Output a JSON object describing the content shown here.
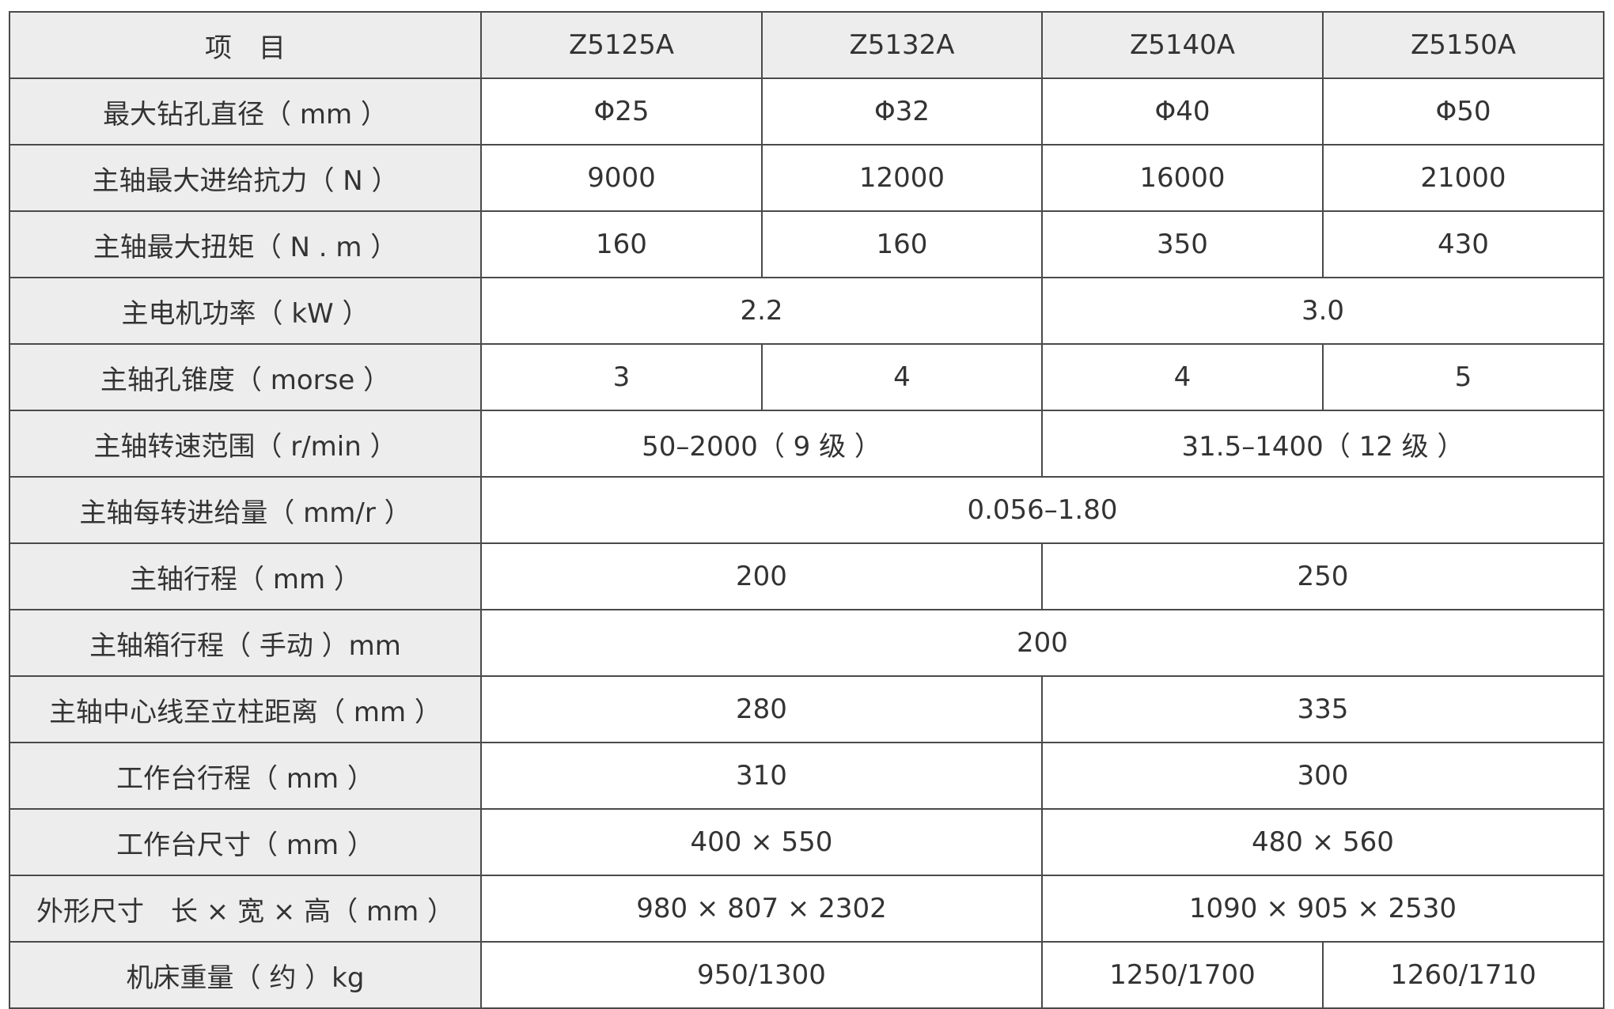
{
  "header": [
    "项　目",
    "Z5125A",
    "Z5132A",
    "Z5140A",
    "Z5150A"
  ],
  "rows": [
    {
      "label": "最大钻孔直径（ mm ）",
      "cells": [
        {
          "text": "Φ25",
          "span": 1
        },
        {
          "text": "Φ32",
          "span": 1
        },
        {
          "text": "Φ40",
          "span": 1
        },
        {
          "text": "Φ50",
          "span": 1
        }
      ]
    },
    {
      "label": "主轴最大进给抗力（ N ）",
      "cells": [
        {
          "text": "9000",
          "span": 1
        },
        {
          "text": "12000",
          "span": 1
        },
        {
          "text": "16000",
          "span": 1
        },
        {
          "text": "21000",
          "span": 1
        }
      ]
    },
    {
      "label": "主轴最大扭矩（ N . m ）",
      "cells": [
        {
          "text": "160",
          "span": 1
        },
        {
          "text": "160",
          "span": 1
        },
        {
          "text": "350",
          "span": 1
        },
        {
          "text": "430",
          "span": 1
        }
      ]
    },
    {
      "label": "主电机功率（ kW ）",
      "cells": [
        {
          "text": "2.2",
          "span": 2
        },
        {
          "text": "3.0",
          "span": 2
        }
      ]
    },
    {
      "label": "主轴孔锥度（ morse ）",
      "cells": [
        {
          "text": "3",
          "span": 1
        },
        {
          "text": "4",
          "span": 1
        },
        {
          "text": "4",
          "span": 1
        },
        {
          "text": "5",
          "span": 1
        }
      ]
    },
    {
      "label": "主轴转速范围（ r/min ）",
      "cells": [
        {
          "text": "50–2000（ 9 级 ）",
          "span": 2
        },
        {
          "text": "31.5–1400（ 12 级 ）",
          "span": 2
        }
      ]
    },
    {
      "label": "主轴每转进给量（ mm/r ）",
      "cells": [
        {
          "text": "0.056–1.80",
          "span": 4
        }
      ]
    },
    {
      "label": "主轴行程（ mm ）",
      "cells": [
        {
          "text": "200",
          "span": 2
        },
        {
          "text": "250",
          "span": 2
        }
      ]
    },
    {
      "label": "主轴箱行程（ 手动 ）mm",
      "cells": [
        {
          "text": "200",
          "span": 4
        }
      ]
    },
    {
      "label": "主轴中心线至立柱距离（ mm ）",
      "cells": [
        {
          "text": "280",
          "span": 2
        },
        {
          "text": "335",
          "span": 2
        }
      ]
    },
    {
      "label": "工作台行程（ mm ）",
      "cells": [
        {
          "text": "310",
          "span": 2
        },
        {
          "text": "300",
          "span": 2
        }
      ]
    },
    {
      "label": "工作台尺寸（ mm ）",
      "cells": [
        {
          "text": "400 × 550",
          "span": 2
        },
        {
          "text": "480 × 560",
          "span": 2
        }
      ]
    },
    {
      "label": "外形尺寸　长 × 宽 × 高（ mm ）",
      "cells": [
        {
          "text": "980 × 807 × 2302",
          "span": 2
        },
        {
          "text": "1090 × 905 × 2530",
          "span": 2
        }
      ]
    },
    {
      "label": "机床重量（ 约 ）kg",
      "cells": [
        {
          "text": "950/1300",
          "span": 2
        },
        {
          "text": "1250/1700",
          "span": 1
        },
        {
          "text": "1260/1710",
          "span": 1
        }
      ]
    }
  ]
}
